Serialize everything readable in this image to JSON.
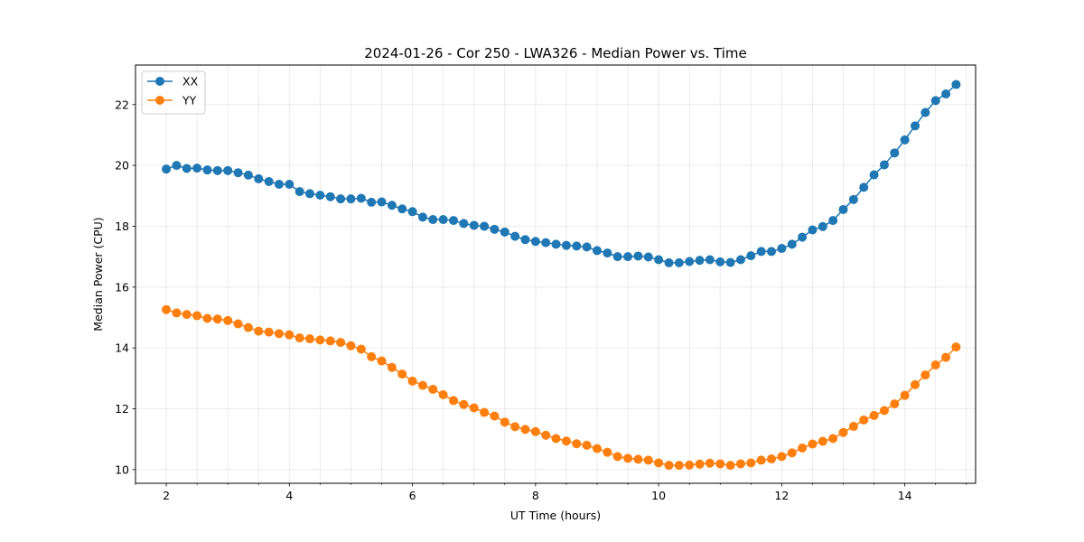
{
  "chart_data": {
    "type": "line",
    "title": "2024-01-26 - Cor 250 - LWA326 - Median Power vs. Time",
    "xlabel": "UT Time (hours)",
    "ylabel": "Median Power (CPU)",
    "xlim": [
      1.5,
      15.15
    ],
    "ylim": [
      9.55,
      23.3
    ],
    "xticks": [
      2,
      4,
      6,
      8,
      10,
      12,
      14
    ],
    "yticks": [
      10,
      12,
      14,
      16,
      18,
      20,
      22
    ],
    "xticks_minor": [
      1.5,
      2.5,
      3,
      3.5,
      4.5,
      5,
      5.5,
      6.5,
      7,
      7.5,
      8.5,
      9,
      9.5,
      10.5,
      11,
      11.5,
      12.5,
      13,
      13.5,
      14.5,
      15
    ],
    "grid": true,
    "legend_position": "upper-left",
    "x": [
      2.0,
      2.167,
      2.333,
      2.5,
      2.667,
      2.833,
      3.0,
      3.167,
      3.333,
      3.5,
      3.667,
      3.833,
      4.0,
      4.167,
      4.333,
      4.5,
      4.667,
      4.833,
      5.0,
      5.167,
      5.333,
      5.5,
      5.667,
      5.833,
      6.0,
      6.167,
      6.333,
      6.5,
      6.667,
      6.833,
      7.0,
      7.167,
      7.333,
      7.5,
      7.667,
      7.833,
      8.0,
      8.167,
      8.333,
      8.5,
      8.667,
      8.833,
      9.0,
      9.167,
      9.333,
      9.5,
      9.667,
      9.833,
      10.0,
      10.167,
      10.333,
      10.5,
      10.667,
      10.833,
      11.0,
      11.167,
      11.333,
      11.5,
      11.667,
      11.833,
      12.0,
      12.167,
      12.333,
      12.5,
      12.667,
      12.833,
      13.0,
      13.167,
      13.333,
      13.5,
      13.667,
      13.833,
      14.0,
      14.167,
      14.333,
      14.5,
      14.667,
      14.833
    ],
    "series": [
      {
        "name": "XX",
        "color": "#1f77b4",
        "values": [
          19.88,
          20.0,
          19.9,
          19.91,
          19.85,
          19.83,
          19.83,
          19.76,
          19.68,
          19.56,
          19.47,
          19.38,
          19.38,
          19.14,
          19.07,
          19.02,
          18.97,
          18.9,
          18.9,
          18.92,
          18.79,
          18.8,
          18.69,
          18.57,
          18.48,
          18.3,
          18.22,
          18.22,
          18.19,
          18.09,
          18.03,
          18.0,
          17.9,
          17.81,
          17.67,
          17.56,
          17.5,
          17.46,
          17.41,
          17.37,
          17.35,
          17.32,
          17.2,
          17.12,
          17.0,
          17.0,
          17.02,
          16.99,
          16.9,
          16.8,
          16.8,
          16.84,
          16.88,
          16.9,
          16.83,
          16.81,
          16.9,
          17.03,
          17.17,
          17.17,
          17.27,
          17.41,
          17.64,
          17.88,
          17.99,
          18.19,
          18.55,
          18.88,
          19.28,
          19.69,
          20.02,
          20.41,
          20.84,
          21.3,
          21.74,
          22.13,
          22.35,
          22.66
        ]
      },
      {
        "name": "YY",
        "color": "#ff7f0e",
        "values": [
          15.26,
          15.15,
          15.1,
          15.06,
          14.97,
          14.95,
          14.9,
          14.79,
          14.67,
          14.55,
          14.52,
          14.47,
          14.43,
          14.33,
          14.3,
          14.26,
          14.23,
          14.18,
          14.07,
          13.96,
          13.71,
          13.57,
          13.36,
          13.14,
          12.91,
          12.77,
          12.64,
          12.46,
          12.27,
          12.14,
          12.03,
          11.88,
          11.76,
          11.56,
          11.41,
          11.32,
          11.25,
          11.13,
          11.02,
          10.94,
          10.85,
          10.8,
          10.69,
          10.57,
          10.43,
          10.37,
          10.34,
          10.31,
          10.22,
          10.14,
          10.14,
          10.15,
          10.18,
          10.21,
          10.19,
          10.14,
          10.19,
          10.22,
          10.31,
          10.35,
          10.43,
          10.55,
          10.71,
          10.84,
          10.93,
          11.02,
          11.22,
          11.42,
          11.63,
          11.78,
          11.94,
          12.16,
          12.44,
          12.79,
          13.11,
          13.44,
          13.69,
          14.03
        ]
      }
    ]
  }
}
